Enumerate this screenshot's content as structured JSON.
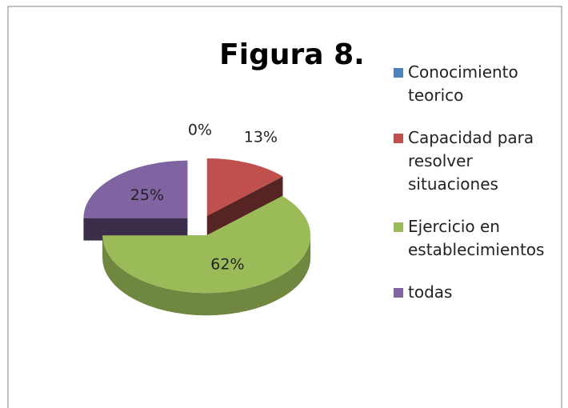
{
  "chart_data": {
    "type": "pie3d",
    "title": "Figura 8.",
    "categories": [
      "Conocimiento teorico",
      "Capacidad para resolver situaciones",
      "Ejercicio en establecimientos",
      "todas"
    ],
    "values": [
      0,
      13,
      62,
      25
    ],
    "value_labels": [
      "0%",
      "13%",
      "62%",
      "25%"
    ],
    "colors": [
      "#4f81bd",
      "#c0504d",
      "#9bbb59",
      "#8064a2"
    ],
    "legend": "right"
  }
}
